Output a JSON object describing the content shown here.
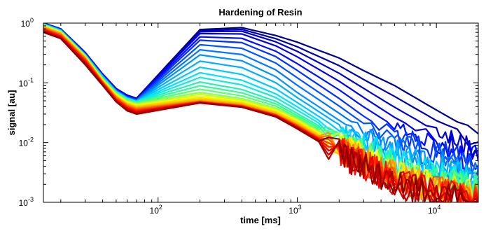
{
  "chart_data": {
    "type": "line",
    "title": "Hardening of Resin",
    "xlabel": "time [ms]",
    "ylabel": "signal [au]",
    "x_scale": "log",
    "y_scale": "log",
    "xlim": [
      15,
      20000
    ],
    "ylim": [
      0.001,
      1
    ],
    "x_ticks": [
      {
        "value": 100,
        "base": "10",
        "exp": "2"
      },
      {
        "value": 1000,
        "base": "10",
        "exp": "3"
      },
      {
        "value": 10000,
        "base": "10",
        "exp": "4"
      }
    ],
    "y_ticks": [
      {
        "value": 1,
        "base": "10",
        "exp": "0"
      },
      {
        "value": 0.1,
        "base": "10",
        "exp": "-1"
      },
      {
        "value": 0.01,
        "base": "10",
        "exp": "-2"
      },
      {
        "value": 0.001,
        "base": "10",
        "exp": "-3"
      }
    ],
    "grid": false,
    "legend": "none",
    "colormap": [
      "#00008b",
      "#0000ff",
      "#0080ff",
      "#00e0ff",
      "#40ff80",
      "#ffff00",
      "#ff8000",
      "#ff0000",
      "#8b0000"
    ],
    "series_count": 30,
    "series": [
      {
        "x": [
          15,
          20,
          30,
          40,
          50,
          60,
          70,
          200,
          400,
          700,
          1000,
          2000,
          3000,
          5000,
          10000,
          20000
        ],
        "y": [
          1.0,
          0.8,
          0.32,
          0.14,
          0.08,
          0.062,
          0.055,
          0.78,
          0.84,
          0.62,
          0.48,
          0.26,
          0.16,
          0.09,
          0.035,
          0.014
        ]
      },
      {
        "x": [
          15,
          20,
          30,
          40,
          50,
          60,
          70,
          200,
          400,
          700,
          1000,
          2000,
          3000,
          5000,
          10000,
          20000
        ],
        "y": [
          1.0,
          0.8,
          0.32,
          0.14,
          0.08,
          0.062,
          0.055,
          0.7,
          0.7,
          0.45,
          0.3,
          0.12,
          0.065,
          0.03,
          0.012,
          0.006
        ]
      },
      {
        "x": [
          15,
          20,
          30,
          40,
          50,
          60,
          70,
          200,
          400,
          700,
          1000,
          2000,
          3000,
          5000,
          10000,
          20000
        ],
        "y": [
          0.98,
          0.78,
          0.3,
          0.13,
          0.075,
          0.058,
          0.052,
          0.5,
          0.45,
          0.26,
          0.15,
          0.05,
          0.025,
          0.012,
          0.007,
          0.004
        ]
      },
      {
        "x": [
          15,
          20,
          30,
          40,
          50,
          60,
          70,
          200,
          400,
          700,
          1000,
          2000,
          3000,
          5000,
          10000,
          20000
        ],
        "y": [
          0.97,
          0.76,
          0.3,
          0.13,
          0.073,
          0.056,
          0.05,
          0.3,
          0.24,
          0.13,
          0.07,
          0.024,
          0.013,
          0.007,
          0.004,
          0.003
        ]
      },
      {
        "x": [
          15,
          20,
          30,
          40,
          50,
          60,
          70,
          200,
          400,
          700,
          1000,
          2000,
          3000,
          5000,
          10000,
          20000
        ],
        "y": [
          0.96,
          0.75,
          0.29,
          0.125,
          0.071,
          0.055,
          0.049,
          0.16,
          0.12,
          0.07,
          0.042,
          0.015,
          0.009,
          0.005,
          0.003,
          0.002
        ]
      },
      {
        "x": [
          15,
          20,
          30,
          40,
          50,
          60,
          70,
          200,
          400,
          700,
          1000,
          2000,
          3000,
          5000,
          10000,
          20000
        ],
        "y": [
          0.95,
          0.74,
          0.29,
          0.12,
          0.07,
          0.054,
          0.048,
          0.1,
          0.075,
          0.048,
          0.03,
          0.012,
          0.007,
          0.004,
          0.0025,
          0.0018
        ]
      },
      {
        "x": [
          15,
          20,
          30,
          40,
          50,
          60,
          70,
          200,
          400,
          700,
          1000,
          2000,
          3000,
          5000,
          10000,
          20000
        ],
        "y": [
          0.93,
          0.72,
          0.28,
          0.115,
          0.066,
          0.05,
          0.045,
          0.07,
          0.055,
          0.038,
          0.025,
          0.01,
          0.006,
          0.0035,
          0.002,
          0.0015
        ]
      },
      {
        "x": [
          15,
          20,
          30,
          40,
          50,
          60,
          70,
          200,
          400,
          700,
          1000,
          2000,
          3000,
          5000,
          10000,
          20000
        ],
        "y": [
          0.9,
          0.7,
          0.27,
          0.11,
          0.062,
          0.047,
          0.042,
          0.058,
          0.048,
          0.034,
          0.023,
          0.009,
          0.0055,
          0.003,
          0.0018,
          0.0013
        ]
      },
      {
        "x": [
          15,
          20,
          30,
          40,
          50,
          60,
          70,
          200,
          400,
          700,
          1000,
          2000,
          3000,
          5000,
          10000,
          20000
        ],
        "y": [
          0.85,
          0.66,
          0.26,
          0.105,
          0.058,
          0.043,
          0.038,
          0.05,
          0.043,
          0.03,
          0.02,
          0.008,
          0.005,
          0.0028,
          0.0016,
          0.0012
        ]
      },
      {
        "x": [
          15,
          20,
          30,
          40,
          50,
          60,
          70,
          200,
          400,
          700,
          1000,
          2000,
          3000,
          5000,
          10000,
          20000
        ],
        "y": [
          0.8,
          0.62,
          0.24,
          0.1,
          0.054,
          0.04,
          0.035,
          0.048,
          0.041,
          0.029,
          0.019,
          0.0075,
          0.0045,
          0.0025,
          0.0015,
          0.0011
        ]
      },
      {
        "x": [
          15,
          20,
          30,
          40,
          50,
          60,
          70,
          200,
          400,
          700,
          1000,
          2000,
          3000,
          5000,
          10000,
          20000
        ],
        "y": [
          0.75,
          0.58,
          0.22,
          0.095,
          0.05,
          0.037,
          0.032,
          0.047,
          0.04,
          0.028,
          0.018,
          0.007,
          0.004,
          0.0022,
          0.0014,
          0.001
        ]
      },
      {
        "x": [
          15,
          20,
          30,
          40,
          50,
          60,
          70,
          200,
          400,
          700,
          1000,
          2000,
          3000,
          5000,
          10000,
          20000
        ],
        "y": [
          0.7,
          0.55,
          0.2,
          0.09,
          0.048,
          0.034,
          0.03,
          0.046,
          0.039,
          0.027,
          0.017,
          0.0065,
          0.0038,
          0.002,
          0.0013,
          0.001
        ]
      }
    ]
  }
}
